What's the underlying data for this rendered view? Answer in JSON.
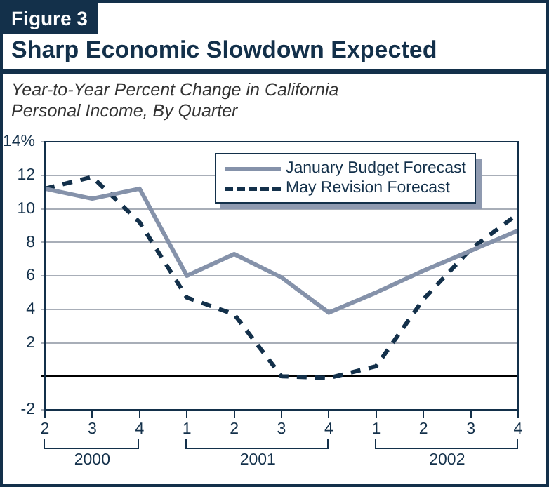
{
  "chart_data": {
    "type": "line",
    "title": "Sharp Economic Slowdown Expected",
    "subtitle": "Year-to-Year Percent Change in California Personal Income, By Quarter",
    "annotations": [
      "Figure 3",
      "2000",
      "2001",
      "2002"
    ],
    "categories": [
      "2",
      "3",
      "4",
      "1",
      "2",
      "3",
      "4",
      "1",
      "2",
      "3",
      "4"
    ],
    "series": [
      {
        "name": "January Budget Forecast",
        "color": "#8592aa",
        "line_style": "solid",
        "values": [
          11.2,
          10.6,
          11.2,
          6.0,
          7.3,
          5.9,
          3.8,
          5.0,
          6.3,
          7.5,
          8.7
        ]
      },
      {
        "name": "May Revision Forecast",
        "color": "#13304a",
        "line_style": "dashed",
        "values": [
          11.2,
          11.9,
          9.2,
          4.7,
          3.7,
          0.0,
          -0.1,
          0.6,
          4.6,
          7.6,
          9.7
        ]
      }
    ],
    "ylim": [
      -2,
      14
    ],
    "yticks": [
      -2,
      {
        "value": 0,
        "label": null
      },
      2,
      4,
      6,
      8,
      10,
      12,
      {
        "value": 14,
        "label": "14%"
      }
    ],
    "grid": "y",
    "legend": "top right",
    "marker": "none"
  }
}
